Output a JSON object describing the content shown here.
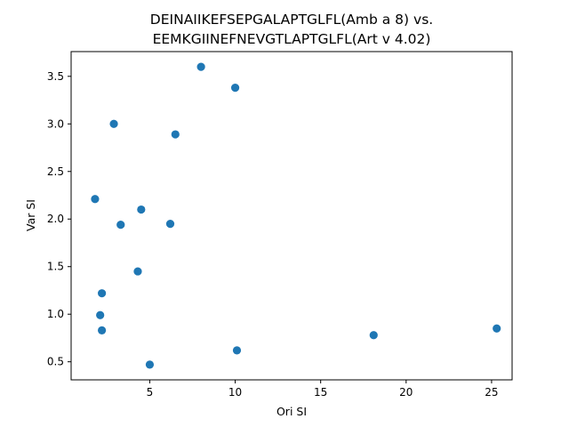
{
  "chart_data": {
    "type": "scatter",
    "title_lines": [
      "DEINAIIKEFSEPGALAPTGLFL(Amb a 8) vs.",
      "EEMKGIINEFNEVGTLAPTGLFL(Art v 4.02)"
    ],
    "xlabel": "Ori SI",
    "ylabel": "Var SI",
    "xlim": [
      0.4,
      26.2
    ],
    "ylim": [
      0.31,
      3.76
    ],
    "xticks": [
      5,
      10,
      15,
      20,
      25
    ],
    "yticks": [
      0.5,
      1.0,
      1.5,
      2.0,
      2.5,
      3.0,
      3.5
    ],
    "xtick_labels": [
      "5",
      "10",
      "15",
      "20",
      "25"
    ],
    "ytick_labels": [
      "0.5",
      "1.0",
      "1.5",
      "2.0",
      "2.5",
      "3.0",
      "3.5"
    ],
    "grid": false,
    "marker_color": "#1f77b4",
    "points": [
      {
        "x": 8.0,
        "y": 3.6
      },
      {
        "x": 10.0,
        "y": 3.38
      },
      {
        "x": 2.9,
        "y": 3.0
      },
      {
        "x": 6.5,
        "y": 2.89
      },
      {
        "x": 1.8,
        "y": 2.21
      },
      {
        "x": 4.5,
        "y": 2.1
      },
      {
        "x": 3.3,
        "y": 1.94
      },
      {
        "x": 6.2,
        "y": 1.95
      },
      {
        "x": 4.3,
        "y": 1.45
      },
      {
        "x": 2.2,
        "y": 1.22
      },
      {
        "x": 2.1,
        "y": 0.99
      },
      {
        "x": 2.2,
        "y": 0.83
      },
      {
        "x": 18.1,
        "y": 0.78
      },
      {
        "x": 25.3,
        "y": 0.85
      },
      {
        "x": 10.1,
        "y": 0.62
      },
      {
        "x": 5.0,
        "y": 0.47
      }
    ]
  }
}
